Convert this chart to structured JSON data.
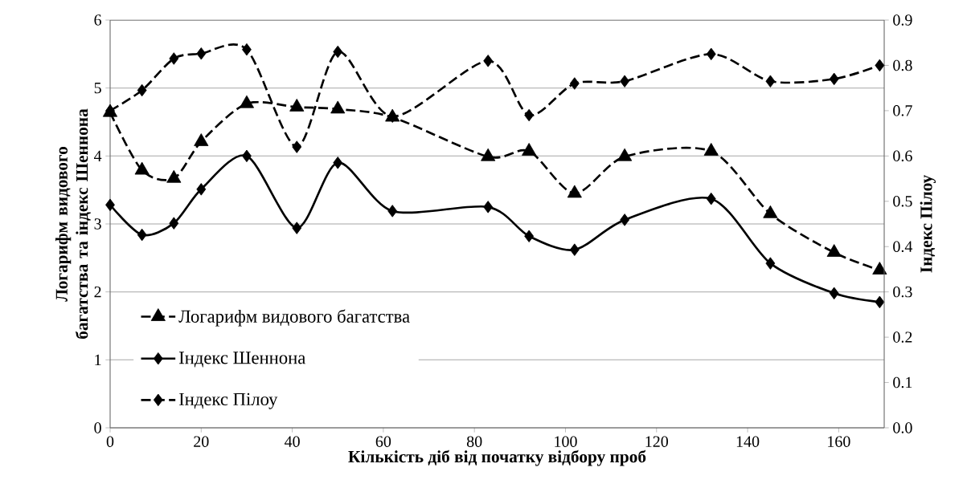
{
  "chart_data": {
    "type": "line",
    "xlabel": "Кількість діб від початку відбору проб",
    "ylabel": "Логарифм видового багатства та індекс Шеннона",
    "y2label": "Індекс Пілоу",
    "x": [
      0,
      7,
      14,
      20,
      30,
      41,
      50,
      62,
      83,
      92,
      102,
      113,
      132,
      145,
      159,
      169
    ],
    "series": [
      {
        "name": "Логарифм видового багатства",
        "color": "#000000",
        "marker": "triangle",
        "line_style": "dashed",
        "values": [
          4.64,
          3.79,
          3.67,
          4.21,
          4.77,
          4.72,
          4.69,
          4.57,
          3.99,
          4.07,
          3.45,
          3.99,
          4.07,
          3.15,
          2.58,
          2.32
        ]
      },
      {
        "name": "Індекс Шеннона",
        "color": "#000000",
        "marker": "diamond",
        "line_style": "solid",
        "values": [
          3.28,
          2.84,
          3.01,
          3.51,
          4.0,
          2.94,
          3.9,
          3.19,
          3.25,
          2.82,
          2.62,
          3.06,
          3.37,
          2.42,
          1.98,
          1.85
        ]
      },
      {
        "name": "Індекс Пілоу",
        "color": "#000000",
        "marker": "diamond",
        "line_style": "dashed",
        "axis": "y2",
        "values": [
          0.7,
          0.745,
          0.815,
          0.826,
          0.835,
          0.62,
          0.83,
          0.687,
          0.81,
          0.69,
          0.76,
          0.765,
          0.825,
          0.765,
          0.77,
          0.8
        ]
      }
    ],
    "xlim": [
      0,
      170
    ],
    "xticks": [
      0,
      20,
      40,
      60,
      80,
      100,
      120,
      140,
      160
    ],
    "ylim": [
      0,
      6
    ],
    "yticks": [
      0,
      1,
      2,
      3,
      4,
      5,
      6
    ],
    "y2lim": [
      0,
      0.9
    ],
    "y2ticks": [
      {
        "value": 0,
        "label": "0.0"
      },
      0.1,
      0.2,
      0.3,
      0.4,
      0.5,
      0.6,
      0.7,
      0.8,
      0.9
    ],
    "grid": "y",
    "legend": "bottom left"
  }
}
